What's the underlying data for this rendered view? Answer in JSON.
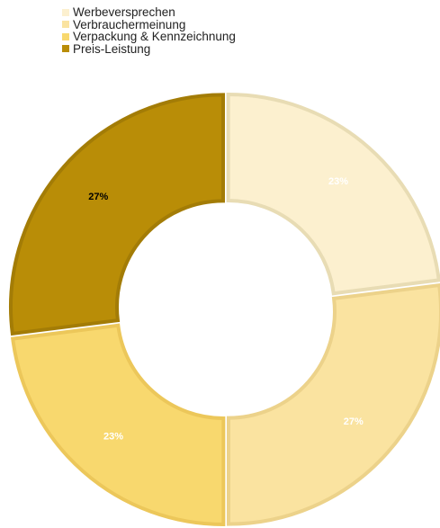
{
  "chart_data": {
    "type": "pie",
    "variant": "donut",
    "title": "",
    "legend_position": "top-left",
    "categories": [
      "Werbeversprechen",
      "Verbrauchermeinung",
      "Verpackung & Kennzeichnung",
      "Preis-Leistung"
    ],
    "values": [
      23,
      27,
      23,
      27
    ],
    "data_labels": [
      "23%",
      "27%",
      "23%",
      "27%"
    ],
    "colors": [
      "#fcf0cf",
      "#fae3a0",
      "#f8d86e",
      "#b98d07"
    ],
    "edge_colors": [
      "#e8dcb4",
      "#ecd28a",
      "#ecc75a",
      "#a37c06"
    ],
    "label_colors": [
      "#ffffff",
      "#ffffff",
      "#ffffff",
      "#000000"
    ]
  }
}
